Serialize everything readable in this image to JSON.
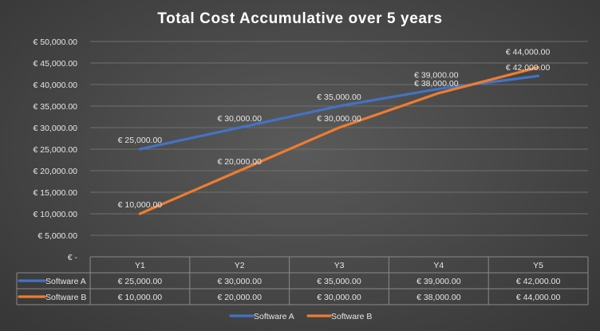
{
  "chart_data": {
    "type": "line",
    "title": "Total Cost  Accumulative  over 5 years",
    "categories": [
      "Y1",
      "Y2",
      "Y3",
      "Y4",
      "Y5"
    ],
    "series": [
      {
        "name": "Software A",
        "color": "#4472c4",
        "values": [
          25000,
          30000,
          35000,
          39000,
          42000
        ],
        "labels": [
          "€ 25,000.00",
          "€ 30,000.00",
          "€ 35,000.00",
          "€ 39,000.00",
          "€ 42,000.00"
        ]
      },
      {
        "name": "Software B",
        "color": "#ed7d31",
        "values": [
          10000,
          20000,
          30000,
          38000,
          44000
        ],
        "labels": [
          "€ 10,000.00",
          "€ 20,000.00",
          "€ 30,000.00",
          "€ 38,000.00",
          "€ 44,000.00"
        ]
      }
    ],
    "ylim": [
      0,
      50000
    ],
    "ytick_labels": [
      "€ -",
      "€ 5,000.00",
      "€ 10,000.00",
      "€ 15,000.00",
      "€ 20,000.00",
      "€ 25,000.00",
      "€ 30,000.00",
      "€ 35,000.00",
      "€ 40,000.00",
      "€ 45,000.00",
      "€ 50,000.00"
    ],
    "grid": true,
    "data_table": true,
    "legend": "bottom"
  }
}
